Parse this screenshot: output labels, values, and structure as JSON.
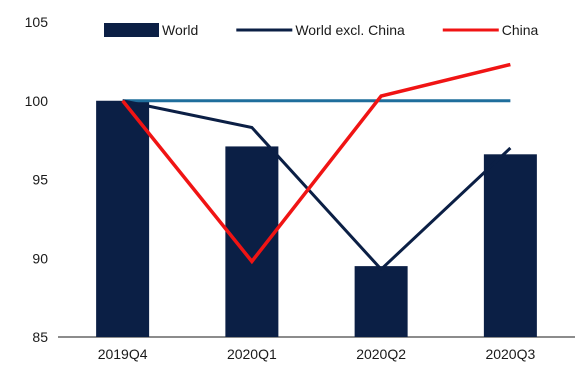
{
  "chart_data": {
    "type": "bar",
    "categories": [
      "2019Q4",
      "2020Q1",
      "2020Q2",
      "2020Q3"
    ],
    "ylim": [
      85,
      105
    ],
    "yticks": [
      85,
      90,
      95,
      100,
      105
    ],
    "grid": false,
    "legend_position": "top",
    "reference_line": {
      "value": 100,
      "color": "#1F6E9C"
    },
    "series": [
      {
        "name": "World",
        "type": "bar",
        "color": "#0B1F45",
        "values": [
          100,
          97.1,
          89.5,
          96.6
        ]
      },
      {
        "name": "World excl. China",
        "type": "line",
        "color": "#0B1F45",
        "values": [
          100,
          98.3,
          89.3,
          97.0
        ]
      },
      {
        "name": "China",
        "type": "line",
        "color": "#F01414",
        "values": [
          100,
          89.8,
          100.3,
          102.3
        ]
      }
    ]
  }
}
